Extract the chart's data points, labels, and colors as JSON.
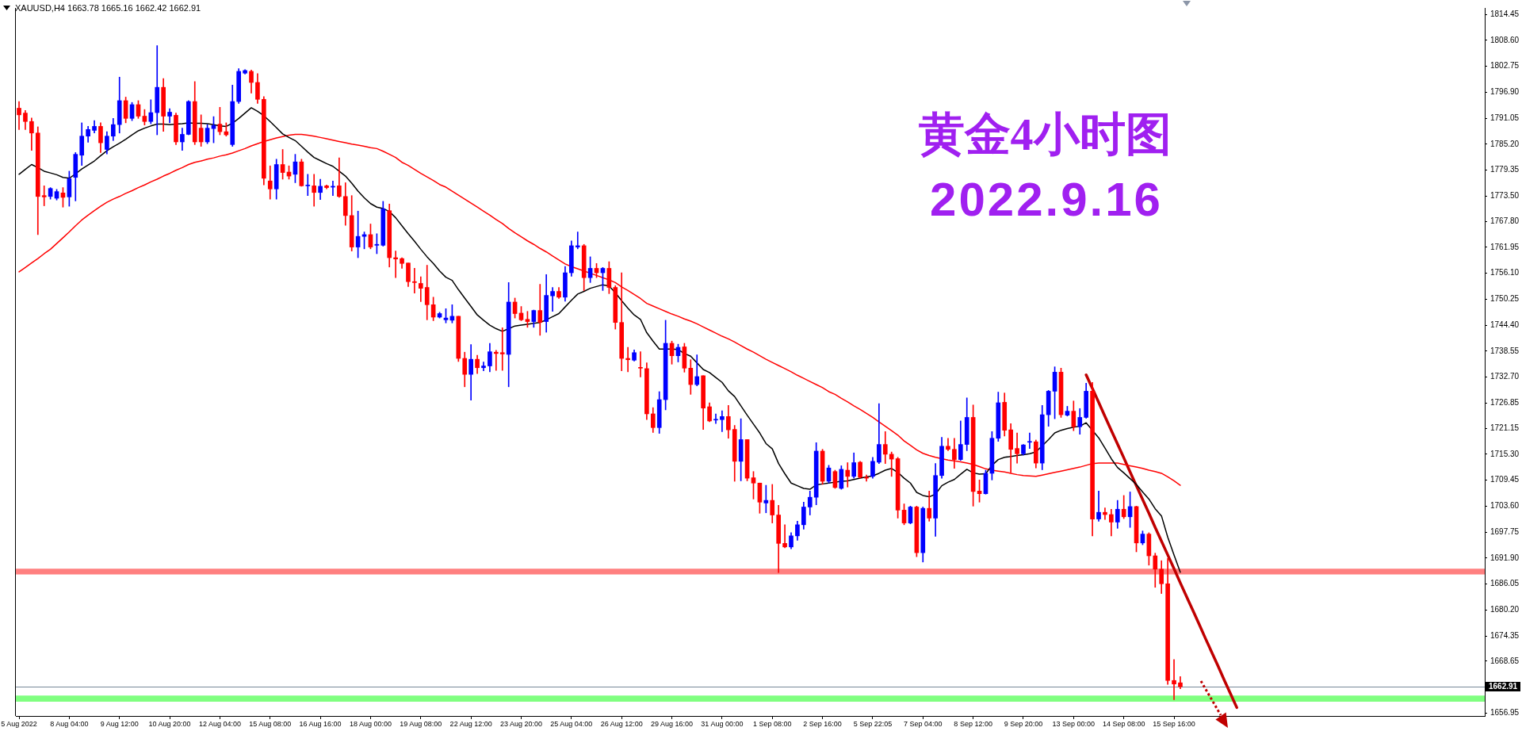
{
  "chart_data": {
    "type": "candlestick",
    "title": "黄金4小时图",
    "subtitle": "2022.9.16",
    "annotations": [
      "XAUUSD,H4 1663.78 1665.16 1662.42 1662.91"
    ],
    "categories": [
      "5 Aug 2022",
      null,
      null,
      null,
      null,
      null,
      null,
      null,
      "8 Aug 04:00",
      null,
      null,
      null,
      null,
      null,
      null,
      null,
      "9 Aug 12:00",
      null,
      null,
      null,
      null,
      null,
      null,
      null,
      "10 Aug 20:00",
      null,
      null,
      null,
      null,
      null,
      null,
      null,
      "12 Aug 04:00",
      null,
      null,
      null,
      null,
      null,
      null,
      null,
      "15 Aug 08:00",
      null,
      null,
      null,
      null,
      null,
      null,
      null,
      "16 Aug 16:00",
      null,
      null,
      null,
      null,
      null,
      null,
      null,
      "18 Aug 00:00",
      null,
      null,
      null,
      null,
      null,
      null,
      null,
      "19 Aug 08:00",
      null,
      null,
      null,
      null,
      null,
      null,
      null,
      "22 Aug 12:00",
      null,
      null,
      null,
      null,
      null,
      null,
      null,
      "23 Aug 20:00",
      null,
      null,
      null,
      null,
      null,
      null,
      null,
      "25 Aug 04:00",
      null,
      null,
      null,
      null,
      null,
      null,
      null,
      "26 Aug 12:00",
      null,
      null,
      null,
      null,
      null,
      null,
      null,
      "29 Aug 16:00",
      null,
      null,
      null,
      null,
      null,
      null,
      null,
      "31 Aug 00:00",
      null,
      null,
      null,
      null,
      null,
      null,
      null,
      "1 Sep 08:00",
      null,
      null,
      null,
      null,
      null,
      null,
      null,
      "2 Sep 16:00",
      null,
      null,
      null,
      null,
      null,
      null,
      null,
      "5 Sep 22:05",
      null,
      null,
      null,
      null,
      null,
      null,
      null,
      "7 Sep 04:00",
      null,
      null,
      null,
      null,
      null,
      null,
      null,
      "8 Sep 12:00",
      null,
      null,
      null,
      null,
      null,
      null,
      null,
      "9 Sep 20:00",
      null,
      null,
      null,
      null,
      null,
      null,
      null,
      "13 Sep 00:00",
      null,
      null,
      null,
      null,
      null,
      null,
      null,
      "14 Sep 08:00",
      null,
      null,
      null,
      null,
      null,
      null,
      null,
      "15 Sep 16:00",
      null,
      null,
      null,
      null,
      null,
      null,
      null,
      null,
      null,
      null,
      null,
      null,
      null,
      null,
      null,
      null,
      null,
      null,
      null,
      null,
      null,
      null,
      null,
      null,
      null,
      null,
      null,
      null,
      null,
      null,
      null,
      null,
      null,
      null,
      null,
      null,
      null,
      null,
      null,
      null,
      null,
      null,
      null,
      null,
      null,
      null,
      null,
      null,
      null
    ],
    "ohlc": [
      [
        1793.3,
        1794.8,
        1788.5,
        1791.8
      ],
      [
        1792.2,
        1792.8,
        1788.5,
        1790.3
      ],
      [
        1790.3,
        1791.1,
        1783.8,
        1787.7
      ],
      [
        1787.7,
        1789.1,
        1764.8,
        1773.4
      ],
      [
        1773.6,
        1775.8,
        1771.3,
        1773.3
      ],
      [
        1773.4,
        1775.4,
        1772.8,
        1775.2
      ],
      [
        1773.0,
        1775.0,
        1772.6,
        1774.5
      ],
      [
        1774.2,
        1775.4,
        1771.0,
        1773.2
      ],
      [
        1773.3,
        1779.1,
        1771.2,
        1777.4
      ],
      [
        1777.7,
        1783.3,
        1772.4,
        1782.9
      ],
      [
        1782.7,
        1790.0,
        1780.4,
        1787.0
      ],
      [
        1787.0,
        1789.2,
        1785.6,
        1788.5
      ],
      [
        1788.3,
        1790.5,
        1787.7,
        1789.2
      ],
      [
        1789.2,
        1790.0,
        1783.3,
        1785.5
      ],
      [
        1784.0,
        1788.0,
        1783.0,
        1787.0
      ],
      [
        1787.0,
        1791.0,
        1786.0,
        1789.6
      ],
      [
        1789.6,
        1800.3,
        1787.7,
        1795.0
      ],
      [
        1795.0,
        1795.8,
        1790.0,
        1791.0
      ],
      [
        1791.0,
        1794.6,
        1790.5,
        1794.1
      ],
      [
        1794.1,
        1795.0,
        1791.0,
        1791.5
      ],
      [
        1791.5,
        1793.0,
        1789.5,
        1790.3
      ],
      [
        1790.3,
        1795.2,
        1789.8,
        1792.3
      ],
      [
        1792.3,
        1807.4,
        1787.3,
        1798.0
      ],
      [
        1798.0,
        1800.0,
        1788.1,
        1791.5
      ],
      [
        1791.5,
        1793.2,
        1790.0,
        1792.4
      ],
      [
        1791.7,
        1792.2,
        1785.1,
        1785.7
      ],
      [
        1785.7,
        1788.8,
        1783.8,
        1787.4
      ],
      [
        1787.4,
        1795.0,
        1787.3,
        1794.8
      ],
      [
        1794.8,
        1799.3,
        1785.1,
        1785.7
      ],
      [
        1788.8,
        1791.8,
        1784.7,
        1785.7
      ],
      [
        1785.7,
        1789.6,
        1785.3,
        1788.8
      ],
      [
        1788.7,
        1791.4,
        1785.5,
        1789.4
      ],
      [
        1789.7,
        1793.5,
        1787.3,
        1788.0
      ],
      [
        1788.0,
        1790.0,
        1787.0,
        1787.3
      ],
      [
        1785.1,
        1798.5,
        1784.7,
        1794.8
      ],
      [
        1794.8,
        1802.2,
        1794.4,
        1801.6
      ],
      [
        1801.2,
        1802.0,
        1801.0,
        1801.8
      ],
      [
        1801.6,
        1801.9,
        1796.7,
        1799.1
      ],
      [
        1799.1,
        1801.1,
        1794.4,
        1795.3
      ],
      [
        1795.3,
        1795.9,
        1776.0,
        1777.5
      ],
      [
        1776.9,
        1780.3,
        1772.8,
        1775.1
      ],
      [
        1775.1,
        1781.8,
        1772.8,
        1780.6
      ],
      [
        1780.6,
        1784.0,
        1777.3,
        1778.8
      ],
      [
        1778.9,
        1780.3,
        1777.3,
        1778.0
      ],
      [
        1778.4,
        1782.9,
        1776.5,
        1781.2
      ],
      [
        1781.2,
        1781.8,
        1775.7,
        1775.8
      ],
      [
        1775.8,
        1778.4,
        1773.6,
        1775.9
      ],
      [
        1775.8,
        1778.4,
        1771.2,
        1774.3
      ],
      [
        1774.3,
        1777.3,
        1772.7,
        1775.7
      ],
      [
        1775.8,
        1776.0,
        1775.1,
        1775.4
      ],
      [
        1775.5,
        1776.9,
        1773.6,
        1775.7
      ],
      [
        1775.8,
        1782.1,
        1773.2,
        1773.4
      ],
      [
        1773.4,
        1776.5,
        1766.9,
        1769.1
      ],
      [
        1769.1,
        1773.6,
        1761.1,
        1762.0
      ],
      [
        1762.0,
        1770.1,
        1759.6,
        1764.4
      ],
      [
        1764.4,
        1765.4,
        1761.6,
        1764.8
      ],
      [
        1764.8,
        1767.2,
        1761.6,
        1762.0
      ],
      [
        1762.4,
        1765.0,
        1760.5,
        1762.6
      ],
      [
        1762.4,
        1772.3,
        1762.2,
        1770.6
      ],
      [
        1770.2,
        1771.7,
        1757.5,
        1759.6
      ],
      [
        1759.6,
        1761.1,
        1755.1,
        1759.3
      ],
      [
        1759.4,
        1759.6,
        1757.2,
        1758.3
      ],
      [
        1758.4,
        1758.4,
        1753.1,
        1754.2
      ],
      [
        1754.2,
        1757.2,
        1751.6,
        1754.0
      ],
      [
        1753.8,
        1755.3,
        1749.7,
        1752.7
      ],
      [
        1752.9,
        1757.9,
        1745.6,
        1749.0
      ],
      [
        1749.0,
        1750.7,
        1745.4,
        1746.2
      ],
      [
        1746.2,
        1747.3,
        1746.0,
        1747.0
      ],
      [
        1745.6,
        1748.1,
        1744.9,
        1746.0
      ],
      [
        1745.5,
        1749.0,
        1744.9,
        1746.4
      ],
      [
        1746.4,
        1746.4,
        1736.2,
        1736.9
      ],
      [
        1736.9,
        1738.3,
        1730.5,
        1733.3
      ],
      [
        1733.3,
        1740.0,
        1727.5,
        1736.7
      ],
      [
        1736.7,
        1737.6,
        1733.5,
        1734.8
      ],
      [
        1734.8,
        1736.1,
        1734.1,
        1735.2
      ],
      [
        1735.2,
        1740.3,
        1733.9,
        1738.4
      ],
      [
        1738.3,
        1738.7,
        1734.2,
        1738.0
      ],
      [
        1738.2,
        1743.8,
        1734.2,
        1737.9
      ],
      [
        1737.8,
        1754.0,
        1730.5,
        1749.6
      ],
      [
        1749.6,
        1750.5,
        1746.0,
        1747.0
      ],
      [
        1747.1,
        1748.6,
        1745.4,
        1745.6
      ],
      [
        1745.7,
        1747.5,
        1743.9,
        1745.2
      ],
      [
        1745.2,
        1747.8,
        1743.9,
        1747.7
      ],
      [
        1747.7,
        1753.6,
        1742.1,
        1745.0
      ],
      [
        1745.2,
        1755.8,
        1742.8,
        1751.1
      ],
      [
        1751.0,
        1752.9,
        1747.5,
        1752.0
      ],
      [
        1752.0,
        1752.9,
        1750.4,
        1750.7
      ],
      [
        1750.7,
        1757.6,
        1749.8,
        1756.2
      ],
      [
        1756.2,
        1763.4,
        1755.4,
        1762.3
      ],
      [
        1762.0,
        1765.4,
        1761.6,
        1762.3
      ],
      [
        1762.3,
        1762.6,
        1752.2,
        1755.1
      ],
      [
        1755.1,
        1759.8,
        1754.0,
        1757.2
      ],
      [
        1757.2,
        1758.3,
        1755.1,
        1756.2
      ],
      [
        1756.2,
        1757.4,
        1752.2,
        1757.2
      ],
      [
        1757.2,
        1758.7,
        1751.5,
        1752.9
      ],
      [
        1752.9,
        1753.3,
        1743.5,
        1745.0
      ],
      [
        1745.0,
        1756.2,
        1734.1,
        1736.9
      ],
      [
        1736.9,
        1739.4,
        1733.9,
        1736.6
      ],
      [
        1736.5,
        1738.8,
        1736.3,
        1738.2
      ],
      [
        1734.8,
        1738.4,
        1732.7,
        1734.7
      ],
      [
        1734.6,
        1735.9,
        1723.1,
        1724.4
      ],
      [
        1724.4,
        1725.8,
        1720.2,
        1721.3
      ],
      [
        1721.3,
        1729.4,
        1720.0,
        1727.6
      ],
      [
        1727.6,
        1745.5,
        1725.3,
        1740.3
      ],
      [
        1740.3,
        1740.8,
        1735.6,
        1737.5
      ],
      [
        1737.5,
        1740.1,
        1736.1,
        1739.4
      ],
      [
        1739.5,
        1740.3,
        1733.8,
        1734.7
      ],
      [
        1734.7,
        1736.6,
        1728.8,
        1731.0
      ],
      [
        1731.0,
        1737.7,
        1730.7,
        1732.8
      ],
      [
        1733.0,
        1733.0,
        1720.9,
        1725.7
      ],
      [
        1726.0,
        1726.9,
        1722.6,
        1722.8
      ],
      [
        1723.0,
        1724.4,
        1722.2,
        1723.1
      ],
      [
        1723.1,
        1725.1,
        1720.4,
        1723.8
      ],
      [
        1723.8,
        1726.3,
        1718.9,
        1720.8
      ],
      [
        1720.9,
        1721.8,
        1709.2,
        1713.7
      ],
      [
        1713.7,
        1723.3,
        1709.3,
        1718.6
      ],
      [
        1718.6,
        1718.6,
        1709.3,
        1709.9
      ],
      [
        1710.0,
        1711.4,
        1705.2,
        1708.8
      ],
      [
        1708.8,
        1708.8,
        1702.0,
        1704.5
      ],
      [
        1704.3,
        1708.3,
        1702.1,
        1704.9
      ],
      [
        1704.9,
        1708.5,
        1699.8,
        1701.6
      ],
      [
        1701.6,
        1703.8,
        1688.6,
        1695.2
      ],
      [
        1695.2,
        1699.4,
        1694.2,
        1694.4
      ],
      [
        1694.4,
        1697.6,
        1694.0,
        1696.9
      ],
      [
        1696.9,
        1700.2,
        1695.9,
        1699.4
      ],
      [
        1699.4,
        1704.5,
        1698.4,
        1703.4
      ],
      [
        1703.4,
        1707.0,
        1701.6,
        1705.6
      ],
      [
        1705.6,
        1717.9,
        1703.9,
        1716.0
      ],
      [
        1716.0,
        1716.4,
        1708.5,
        1709.2
      ],
      [
        1709.2,
        1712.8,
        1708.8,
        1712.2
      ],
      [
        1711.4,
        1711.7,
        1707.6,
        1707.8
      ],
      [
        1707.6,
        1712.7,
        1707.4,
        1711.9
      ],
      [
        1711.7,
        1713.4,
        1707.9,
        1710.3
      ],
      [
        1710.3,
        1715.6,
        1709.9,
        1713.4
      ],
      [
        1713.5,
        1713.7,
        1709.9,
        1710.1
      ],
      [
        1710.1,
        1710.6,
        1709.2,
        1709.9
      ],
      [
        1710.3,
        1714.6,
        1709.9,
        1713.7
      ],
      [
        1713.5,
        1726.7,
        1713.2,
        1717.5
      ],
      [
        1717.5,
        1720.4,
        1713.2,
        1715.3
      ],
      [
        1715.3,
        1715.8,
        1710.3,
        1714.2
      ],
      [
        1714.3,
        1714.6,
        1700.9,
        1702.7
      ],
      [
        1702.7,
        1704.1,
        1699.4,
        1699.8
      ],
      [
        1699.8,
        1703.6,
        1699.6,
        1703.4
      ],
      [
        1703.4,
        1703.6,
        1692.2,
        1693.1
      ],
      [
        1693.1,
        1703.4,
        1691.0,
        1703.1
      ],
      [
        1703.1,
        1707.0,
        1700.2,
        1700.9
      ],
      [
        1700.9,
        1713.2,
        1696.8,
        1710.5
      ],
      [
        1710.5,
        1719.1,
        1709.9,
        1717.1
      ],
      [
        1717.1,
        1718.9,
        1716.1,
        1716.4
      ],
      [
        1716.4,
        1718.9,
        1712.1,
        1714.1
      ],
      [
        1714.1,
        1722.8,
        1713.9,
        1717.5
      ],
      [
        1717.5,
        1728.0,
        1716.1,
        1723.6
      ],
      [
        1723.6,
        1726.4,
        1703.6,
        1706.9
      ],
      [
        1707.0,
        1709.5,
        1704.5,
        1706.4
      ],
      [
        1706.4,
        1711.7,
        1706.3,
        1711.0
      ],
      [
        1711.0,
        1720.4,
        1709.5,
        1718.9
      ],
      [
        1718.9,
        1729.3,
        1718.2,
        1726.9
      ],
      [
        1727.0,
        1729.1,
        1719.4,
        1720.7
      ],
      [
        1720.8,
        1722.2,
        1711.2,
        1716.4
      ],
      [
        1716.6,
        1720.1,
        1713.3,
        1715.4
      ],
      [
        1715.4,
        1717.5,
        1715.1,
        1717.4
      ],
      [
        1718.0,
        1720.1,
        1716.6,
        1718.1
      ],
      [
        1718.1,
        1718.5,
        1712.2,
        1713.3
      ],
      [
        1713.3,
        1726.3,
        1711.8,
        1724.2
      ],
      [
        1724.2,
        1729.7,
        1721.6,
        1729.5
      ],
      [
        1729.5,
        1735.0,
        1723.3,
        1733.8
      ],
      [
        1733.8,
        1734.7,
        1723.6,
        1724.2
      ],
      [
        1724.1,
        1726.1,
        1723.9,
        1725.0
      ],
      [
        1725.0,
        1727.3,
        1720.6,
        1721.5
      ],
      [
        1721.5,
        1725.6,
        1719.8,
        1723.6
      ],
      [
        1723.6,
        1731.3,
        1723.4,
        1729.5
      ],
      [
        1729.5,
        1731.5,
        1696.9,
        1700.7
      ],
      [
        1700.7,
        1707.0,
        1700.2,
        1702.2
      ],
      [
        1702.2,
        1703.2,
        1700.6,
        1701.7
      ],
      [
        1701.7,
        1702.9,
        1696.9,
        1700.0
      ],
      [
        1700.0,
        1704.9,
        1698.6,
        1702.9
      ],
      [
        1702.9,
        1706.0,
        1700.8,
        1701.2
      ],
      [
        1701.2,
        1706.8,
        1698.8,
        1703.5
      ],
      [
        1703.5,
        1703.6,
        1693.3,
        1695.3
      ],
      [
        1695.3,
        1698.0,
        1694.9,
        1697.3
      ],
      [
        1697.3,
        1697.6,
        1690.3,
        1692.4
      ],
      [
        1692.4,
        1693.0,
        1685.3,
        1689.4
      ],
      [
        1689.4,
        1691.3,
        1683.9,
        1686.1
      ],
      [
        1686.1,
        1691.8,
        1663.4,
        1664.3
      ],
      [
        1664.3,
        1669.0,
        1660.0,
        1663.5
      ],
      [
        1663.78,
        1665.16,
        1662.42,
        1662.91
      ],
      null,
      null,
      null,
      null,
      null,
      null,
      null,
      null,
      null,
      null,
      null,
      null,
      null,
      null,
      null,
      null,
      null,
      null,
      null,
      null,
      null,
      null,
      null,
      null,
      null,
      null,
      null,
      null,
      null,
      null,
      null,
      null,
      null,
      null,
      null,
      null,
      null,
      null,
      null,
      null,
      null,
      null,
      null,
      null,
      null,
      null,
      null,
      null
    ],
    "colors": [
      "#ff0000",
      "#ff0000",
      "#ff0000",
      "#ff0000",
      "#ff0000",
      "#0000ff",
      "#0000ff",
      "#ff0000",
      "#0000ff",
      "#0000ff",
      "#0000ff",
      "#0000ff",
      "#0000ff",
      "#ff0000",
      "#0000ff",
      "#0000ff",
      "#0000ff",
      "#ff0000",
      "#0000ff",
      "#ff0000",
      "#ff0000",
      "#0000ff",
      "#0000ff",
      "#ff0000",
      "#0000ff",
      "#ff0000",
      "#0000ff",
      "#0000ff",
      "#ff0000",
      "#ff0000",
      "#0000ff",
      "#0000ff",
      "#ff0000",
      "#ff0000",
      "#0000ff",
      "#0000ff",
      "#0000ff",
      "#ff0000",
      "#ff0000",
      "#ff0000",
      "#ff0000",
      "#0000ff",
      "#ff0000",
      "#ff0000",
      "#0000ff",
      "#ff0000",
      "#0000ff",
      "#ff0000",
      "#0000ff",
      "#ff0000",
      "#0000ff",
      "#ff0000",
      "#ff0000",
      "#ff0000",
      "#0000ff",
      "#0000ff",
      "#ff0000",
      "#0000ff",
      "#0000ff",
      "#ff0000",
      "#ff0000",
      "#ff0000",
      "#ff0000",
      "#ff0000",
      "#ff0000",
      "#ff0000",
      "#ff0000",
      "#0000ff",
      "#0000ff",
      "#0000ff",
      "#ff0000",
      "#ff0000",
      "#0000ff",
      "#ff0000",
      "#0000ff",
      "#0000ff",
      "#ff0000",
      "#ff0000",
      "#0000ff",
      "#ff0000",
      "#ff0000",
      "#ff0000",
      "#0000ff",
      "#ff0000",
      "#0000ff",
      "#0000ff",
      "#ff0000",
      "#0000ff",
      "#0000ff",
      "#0000ff",
      "#ff0000",
      "#0000ff",
      "#ff0000",
      "#0000ff",
      "#ff0000",
      "#ff0000",
      "#ff0000",
      "#ff0000",
      "#0000ff",
      "#ff0000",
      "#ff0000",
      "#ff0000",
      "#0000ff",
      "#0000ff",
      "#ff0000",
      "#0000ff",
      "#ff0000",
      "#ff0000",
      "#0000ff",
      "#ff0000",
      "#ff0000",
      "#0000ff",
      "#0000ff",
      "#ff0000",
      "#ff0000",
      "#0000ff",
      "#ff0000",
      "#ff0000",
      "#ff0000",
      "#0000ff",
      "#ff0000",
      "#ff0000",
      "#ff0000",
      "#0000ff",
      "#0000ff",
      "#0000ff",
      "#0000ff",
      "#0000ff",
      "#ff0000",
      "#0000ff",
      "#ff0000",
      "#0000ff",
      "#ff0000",
      "#0000ff",
      "#ff0000",
      "#ff0000",
      "#0000ff",
      "#0000ff",
      "#ff0000",
      "#ff0000",
      "#ff0000",
      "#ff0000",
      "#0000ff",
      "#ff0000",
      "#0000ff",
      "#ff0000",
      "#0000ff",
      "#0000ff",
      "#ff0000",
      "#ff0000",
      "#0000ff",
      "#0000ff",
      "#ff0000",
      "#ff0000",
      "#0000ff",
      "#0000ff",
      "#0000ff",
      "#ff0000",
      "#ff0000",
      "#ff0000",
      "#0000ff",
      "#0000ff",
      "#ff0000",
      "#0000ff",
      "#0000ff",
      "#0000ff",
      "#ff0000",
      "#0000ff",
      "#ff0000",
      "#0000ff",
      "#0000ff",
      "#ff0000",
      "#0000ff",
      "#ff0000",
      "#ff0000",
      "#0000ff",
      "#ff0000",
      "#0000ff",
      "#ff0000",
      "#0000ff",
      "#ff0000",
      "#ff0000",
      "#ff0000",
      "#ff0000",
      "#ff0000",
      "#ff0000",
      null,
      null,
      null,
      null,
      null,
      null,
      null,
      null,
      null,
      null,
      null,
      null,
      null,
      null,
      null,
      null,
      null,
      null,
      null,
      null,
      null,
      null,
      null,
      null,
      null,
      null,
      null,
      null,
      null,
      null,
      null,
      null,
      null,
      null,
      null,
      null,
      null,
      null,
      null,
      null,
      null,
      null,
      null,
      null,
      null,
      null,
      null,
      null
    ],
    "series": [
      {
        "type": "line",
        "color": "#000000",
        "values": [
          1778.4,
          1779.5,
          1780.6,
          1779.9,
          1779.1,
          1778.7,
          1778.3,
          1777.7,
          1777.5,
          1778.5,
          1779.6,
          1780.5,
          1781.4,
          1782.6,
          1783.7,
          1784.6,
          1785.4,
          1786.3,
          1787.3,
          1788.2,
          1788.8,
          1789.3,
          1789.7,
          1789.7,
          1789.6,
          1789.7,
          1789.8,
          1790.0,
          1789.9,
          1789.9,
          1789.8,
          1789.6,
          1789.3,
          1789.2,
          1789.9,
          1791.0,
          1792.2,
          1793.4,
          1792.6,
          1791.6,
          1790.3,
          1788.9,
          1787.5,
          1786.7,
          1786.0,
          1784.7,
          1783.4,
          1782.2,
          1781.5,
          1780.8,
          1780.2,
          1779.1,
          1778.0,
          1776.4,
          1774.6,
          1773.1,
          1771.8,
          1771.0,
          1770.7,
          1770.0,
          1768.6,
          1766.8,
          1765.0,
          1763.3,
          1761.5,
          1759.8,
          1758.3,
          1756.6,
          1755.2,
          1754.5,
          1752.4,
          1750.5,
          1748.6,
          1746.7,
          1745.5,
          1744.4,
          1743.6,
          1743.0,
          1743.6,
          1744.2,
          1744.4,
          1744.6,
          1744.8,
          1745.0,
          1745.6,
          1746.3,
          1747.0,
          1748.5,
          1750.0,
          1751.4,
          1752.0,
          1752.7,
          1753.1,
          1753.5,
          1753.2,
          1751.7,
          1749.9,
          1748.2,
          1746.7,
          1745.7,
          1742.7,
          1740.8,
          1739.0,
          1739.0,
          1739.0,
          1738.9,
          1738.0,
          1737.4,
          1735.9,
          1734.4,
          1733.7,
          1732.6,
          1731.5,
          1729.6,
          1728.3,
          1726.2,
          1724.1,
          1722.1,
          1720.1,
          1717.7,
          1716.5,
          1713.2,
          1710.9,
          1708.8,
          1708.2,
          1707.6,
          1707.4,
          1708.4,
          1708.6,
          1708.8,
          1709.0,
          1709.2,
          1709.3,
          1709.6,
          1709.9,
          1710.2,
          1710.4,
          1711.0,
          1711.7,
          1712.1,
          1711.2,
          1709.9,
          1708.8,
          1706.7,
          1706.0,
          1705.7,
          1706.3,
          1708.2,
          1709.0,
          1709.6,
          1710.8,
          1711.9,
          1711.1,
          1710.8,
          1710.9,
          1712.8,
          1714.1,
          1714.6,
          1714.8,
          1715.0,
          1715.2,
          1715.4,
          1715.8,
          1717.2,
          1718.6,
          1720.1,
          1720.7,
          1721.1,
          1721.4,
          1721.6,
          1722.4,
          1720.7,
          1719.0,
          1716.7,
          1714.3,
          1712.3,
          1711.1,
          1709.8,
          1708.5,
          1706.8,
          1705.2,
          1703.0,
          1701.4,
          1696.6,
          1692.6,
          1688.7,
          null,
          null,
          null,
          null,
          null,
          null,
          null,
          null,
          null,
          null,
          null,
          null,
          null,
          null,
          null,
          null,
          null,
          null,
          null,
          null,
          null,
          null,
          null,
          null,
          null,
          null,
          null,
          null,
          null,
          null,
          null,
          null,
          null,
          null,
          null,
          null,
          null,
          null,
          null,
          null,
          null,
          null,
          null,
          null,
          null,
          null,
          null,
          null
        ]
      },
      {
        "type": "line",
        "color": "#ff0000",
        "values": [
          1756.4,
          1757.4,
          1758.4,
          1759.4,
          1760.5,
          1761.5,
          1762.8,
          1764.1,
          1765.4,
          1766.8,
          1768.1,
          1769.2,
          1770.2,
          1771.2,
          1772.1,
          1772.8,
          1773.4,
          1774.1,
          1774.7,
          1775.4,
          1776.0,
          1776.7,
          1777.3,
          1778.0,
          1778.6,
          1779.3,
          1779.9,
          1780.6,
          1781.1,
          1781.4,
          1781.8,
          1782.1,
          1782.5,
          1782.8,
          1783.2,
          1783.7,
          1784.2,
          1784.8,
          1785.3,
          1785.8,
          1786.2,
          1786.6,
          1786.9,
          1787.2,
          1787.4,
          1787.4,
          1787.2,
          1787.0,
          1786.7,
          1786.4,
          1786.1,
          1785.8,
          1785.5,
          1785.2,
          1785.0,
          1784.7,
          1784.4,
          1784.2,
          1783.6,
          1782.9,
          1782.2,
          1781.1,
          1780.4,
          1779.5,
          1778.6,
          1777.8,
          1777.0,
          1776.1,
          1775.5,
          1774.6,
          1773.7,
          1772.8,
          1771.9,
          1771.0,
          1770.1,
          1769.2,
          1768.2,
          1767.3,
          1766.2,
          1765.2,
          1764.3,
          1763.4,
          1762.6,
          1761.7,
          1760.9,
          1760.0,
          1759.1,
          1758.2,
          1757.6,
          1757.1,
          1756.6,
          1756.1,
          1755.6,
          1755.1,
          1754.6,
          1754.0,
          1753.0,
          1752.2,
          1751.3,
          1750.4,
          1749.3,
          1748.7,
          1748.1,
          1747.5,
          1746.9,
          1746.4,
          1745.8,
          1745.3,
          1744.7,
          1744.0,
          1743.3,
          1742.6,
          1741.9,
          1741.3,
          1740.6,
          1739.8,
          1739.0,
          1738.3,
          1737.5,
          1736.7,
          1736.0,
          1735.3,
          1734.6,
          1733.9,
          1733.1,
          1732.4,
          1731.7,
          1731.0,
          1730.3,
          1729.4,
          1728.8,
          1727.9,
          1727.1,
          1726.2,
          1725.4,
          1724.5,
          1723.6,
          1722.6,
          1721.6,
          1720.6,
          1719.6,
          1718.3,
          1717.3,
          1716.3,
          1715.5,
          1715.0,
          1714.6,
          1714.3,
          1714.0,
          1713.8,
          1713.6,
          1713.3,
          1713.0,
          1712.5,
          1712.0,
          1711.7,
          1711.5,
          1711.3,
          1711.0,
          1710.7,
          1710.5,
          1710.4,
          1710.3,
          1710.6,
          1710.9,
          1711.2,
          1711.5,
          1711.8,
          1712.1,
          1712.4,
          1712.8,
          1713.2,
          1713.3,
          1713.3,
          1713.3,
          1713.3,
          1713.0,
          1712.7,
          1712.4,
          1712.1,
          1711.7,
          1711.4,
          1711.0,
          1710.2,
          1709.3,
          1708.3,
          null,
          null,
          null,
          null,
          null,
          null,
          null,
          null,
          null,
          null,
          null,
          null,
          null,
          null,
          null,
          null,
          null,
          null,
          null,
          null,
          null,
          null,
          null,
          null,
          null,
          null,
          null,
          null,
          null,
          null,
          null,
          null,
          null,
          null,
          null,
          null,
          null,
          null,
          null,
          null,
          null,
          null,
          null,
          null,
          null,
          null,
          null,
          null
        ]
      },
      {
        "type": "line",
        "color": "#c00000",
        "values": [
          null,
          null,
          null,
          null,
          null,
          null,
          null,
          null,
          null,
          null,
          null,
          null,
          null,
          null,
          null,
          null,
          null,
          null,
          null,
          null,
          null,
          null,
          null,
          null,
          null,
          null,
          null,
          null,
          null,
          null,
          null,
          null,
          null,
          null,
          null,
          null,
          null,
          null,
          null,
          null,
          null,
          null,
          null,
          null,
          null,
          null,
          null,
          null,
          null,
          null,
          null,
          null,
          null,
          null,
          null,
          null,
          null,
          null,
          null,
          null,
          null,
          null,
          null,
          null,
          null,
          null,
          null,
          null,
          null,
          null,
          null,
          null,
          null,
          null,
          null,
          null,
          null,
          null,
          null,
          null,
          null,
          null,
          null,
          null,
          null,
          null,
          null,
          null,
          null,
          null,
          null,
          null,
          null,
          null,
          null,
          null,
          null,
          null,
          null,
          null,
          null,
          null,
          null,
          null,
          null,
          null,
          null,
          null,
          null,
          null,
          null,
          null,
          null,
          null,
          null,
          null,
          null,
          null,
          null,
          null,
          null,
          null,
          null,
          null,
          null,
          null,
          null,
          null,
          null,
          null,
          null,
          null,
          null,
          null,
          null,
          null,
          null,
          null,
          null,
          null,
          null,
          null,
          null,
          null,
          null,
          null,
          null,
          null,
          null,
          null,
          null,
          null,
          null,
          null,
          null,
          null,
          null,
          null,
          null,
          null,
          null,
          null,
          null,
          null,
          null,
          null,
          null,
          null,
          null,
          null,
          1733.2,
          1730.1,
          1727.0,
          1723.8,
          1720.7,
          1717.6,
          1714.5,
          1711.3,
          1708.2,
          1705.1,
          1702.0,
          1698.8,
          1695.7,
          1692.6,
          1689.5,
          1686.3,
          1683.2,
          1680.1,
          1677.0,
          1673.8,
          1670.7,
          1667.6,
          1664.4,
          1661.3,
          1658.2,
          null,
          null,
          null,
          null,
          null,
          null,
          null,
          null,
          null,
          null,
          null,
          null,
          null,
          null,
          null,
          null,
          null,
          null,
          null,
          null,
          null,
          null,
          null,
          null,
          null,
          null,
          null,
          null,
          null,
          null,
          null,
          null,
          null,
          null,
          null,
          null,
          null,
          null,
          null
        ]
      }
    ],
    "ylim": [
      1656.3,
      1815.9
    ],
    "yticks": [
      1814.45,
      {
        "value": 1808.6,
        "label": "1808.60"
      },
      1802.75,
      {
        "value": 1796.9,
        "label": "1796.90"
      },
      1791.05,
      {
        "value": 1785.2,
        "label": "1785.20"
      },
      1779.35,
      {
        "value": 1773.5,
        "label": "1773.50"
      },
      {
        "value": 1767.8,
        "label": "1767.80"
      },
      1761.95,
      {
        "value": 1756.1,
        "label": "1756.10"
      },
      1750.25,
      {
        "value": 1744.4,
        "label": "1744.40"
      },
      1738.55,
      {
        "value": 1732.7,
        "label": "1732.70"
      },
      1726.85,
      1721.15,
      {
        "value": 1715.3,
        "label": "1715.30"
      },
      1709.45,
      {
        "value": 1703.6,
        "label": "1703.60"
      },
      1697.75,
      {
        "value": 1691.9,
        "label": "1691.90"
      },
      1686.05,
      {
        "value": 1680.2,
        "label": "1680.20"
      },
      1674.35,
      1668.65,
      1656.95
    ],
    "bands": [
      {
        "axis": "y",
        "from": 1688.2,
        "to": 1689.5,
        "color": "#ff8080"
      },
      {
        "axis": "y",
        "from": 1659.5,
        "to": 1660.9,
        "color": "#80ff80"
      }
    ],
    "ref_lines": [
      {
        "axis": "y",
        "value": 1662.91,
        "label": "1662.91",
        "color": "#778899"
      }
    ]
  }
}
